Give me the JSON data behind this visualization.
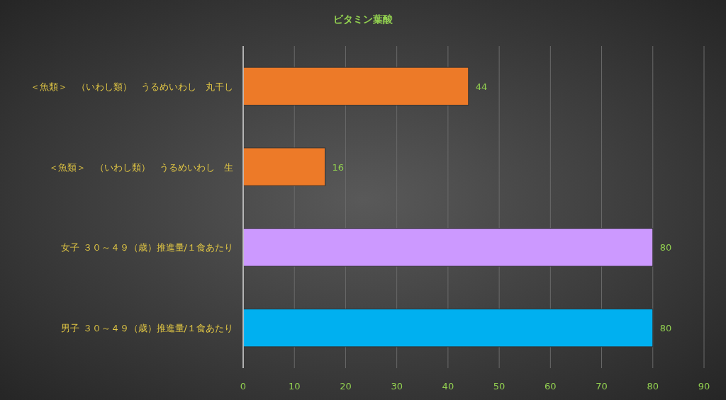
{
  "chart_data": {
    "type": "bar",
    "orientation": "horizontal",
    "title": "ビタミン葉酸",
    "categories": [
      "＜魚類＞　（いわし類）　うるめいわし　丸干し",
      "＜魚類＞　（いわし類）　うるめいわし　生",
      "女子 ３０～４９（歳）推進量/１食あたり",
      "男子 ３０～４９（歳）推進量/１食あたり"
    ],
    "values": [
      44,
      16,
      80,
      80
    ],
    "colors": [
      "#ed7a28",
      "#ed7a28",
      "#cc99ff",
      "#00b0f0"
    ],
    "xlim": [
      0,
      90
    ],
    "xticks": [
      0,
      10,
      20,
      30,
      40,
      50,
      60,
      70,
      80,
      90
    ],
    "grid": "x",
    "data_labels": true
  }
}
